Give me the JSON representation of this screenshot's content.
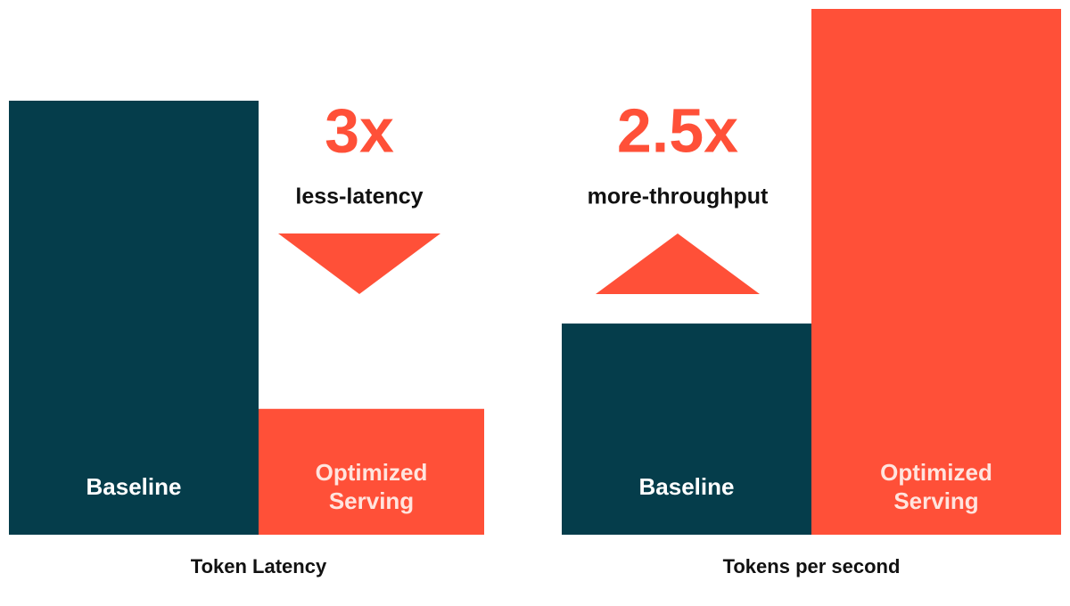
{
  "chart_data": [
    {
      "type": "bar",
      "title": "Token Latency",
      "categories": [
        "Baseline",
        "Optimized Serving"
      ],
      "series": [
        {
          "name": "Token Latency",
          "colors": [
            "#053d4b",
            "#ff5038"
          ],
          "values": [
            1,
            0.29
          ]
        }
      ],
      "ylim": [
        0,
        1
      ],
      "annotation": {
        "headline": "3x",
        "text": "less-latency",
        "direction": "down",
        "color": "#ff5038"
      }
    },
    {
      "type": "bar",
      "title": "Tokens per second",
      "categories": [
        "Baseline",
        "Optimized Serving"
      ],
      "series": [
        {
          "name": "Tokens per second",
          "colors": [
            "#053d4b",
            "#ff5038"
          ],
          "values": [
            1,
            2.49
          ]
        }
      ],
      "ylim": [
        0,
        2.49
      ],
      "annotation": {
        "headline": "2.5x",
        "text": "more-throughput",
        "direction": "up",
        "color": "#ff5038"
      }
    }
  ]
}
